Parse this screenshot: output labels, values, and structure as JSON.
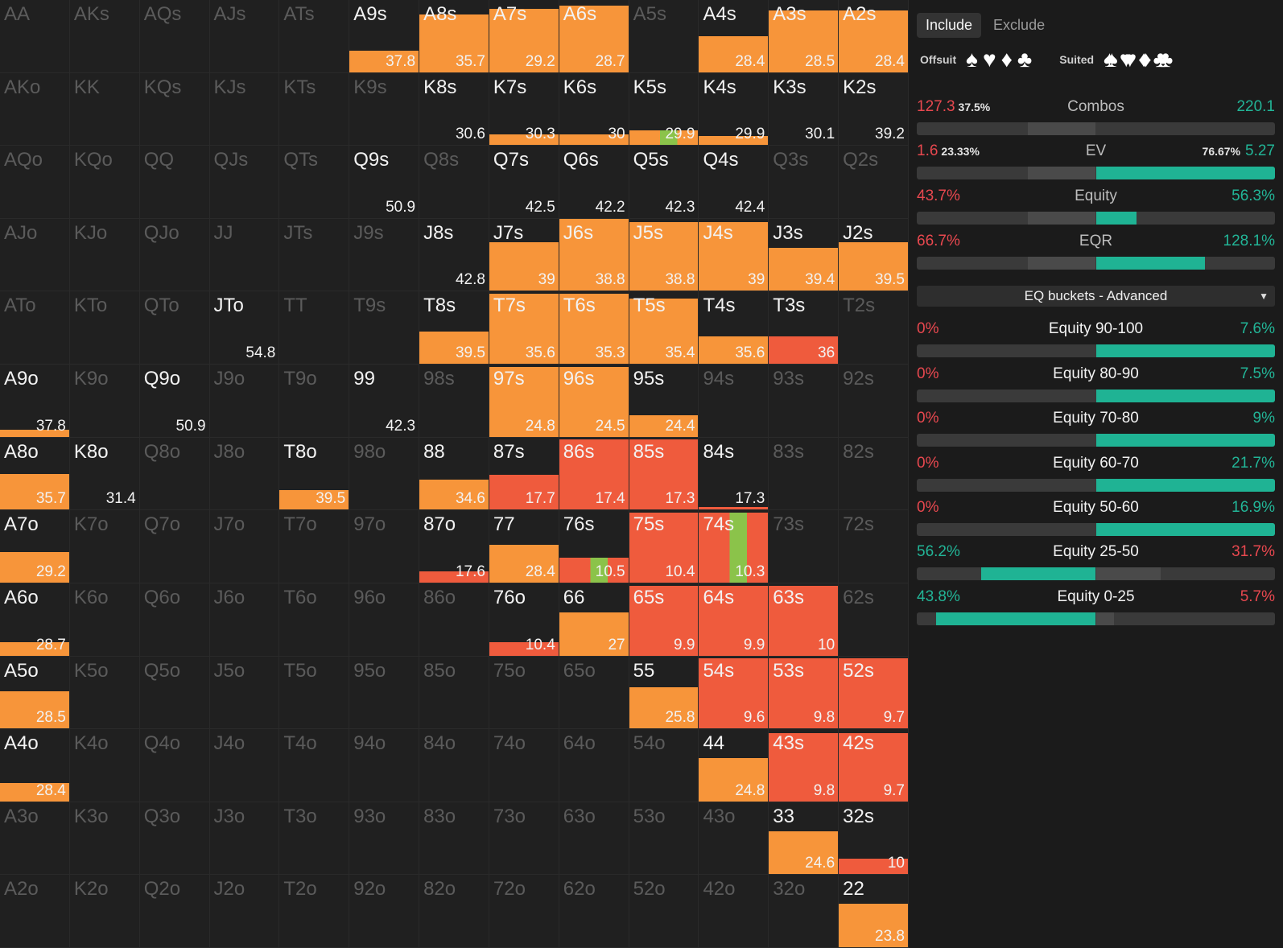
{
  "grid": {
    "rows": [
      [
        [
          "AA",
          0,
          0
        ],
        [
          "AKs",
          0,
          0
        ],
        [
          "AQs",
          0,
          0
        ],
        [
          "AJs",
          0,
          0
        ],
        [
          "ATs",
          0,
          0
        ],
        [
          "A9s",
          1,
          "37.8"
        ],
        [
          "A8s",
          1,
          "35.7"
        ],
        [
          "A7s",
          1,
          "29.2"
        ],
        [
          "A6s",
          1,
          "28.7"
        ],
        [
          "A5s",
          0,
          0
        ],
        [
          "A4s",
          1,
          "28.4"
        ],
        [
          "A3s",
          1,
          "28.5"
        ],
        [
          "A2s",
          1,
          "28.4"
        ]
      ],
      [
        [
          "AKo",
          0,
          0
        ],
        [
          "KK",
          0,
          0
        ],
        [
          "KQs",
          0,
          0
        ],
        [
          "KJs",
          0,
          0
        ],
        [
          "KTs",
          0,
          0
        ],
        [
          "K9s",
          0,
          0
        ],
        [
          "K8s",
          1,
          "30.6"
        ],
        [
          "K7s",
          1,
          "30.3"
        ],
        [
          "K6s",
          1,
          "30"
        ],
        [
          "K5s",
          1,
          "29.9"
        ],
        [
          "K4s",
          1,
          "29.9"
        ],
        [
          "K3s",
          1,
          "30.1"
        ],
        [
          "K2s",
          1,
          "39.2"
        ]
      ],
      [
        [
          "AQo",
          0,
          0
        ],
        [
          "KQo",
          0,
          0
        ],
        [
          "QQ",
          0,
          0
        ],
        [
          "QJs",
          0,
          0
        ],
        [
          "QTs",
          0,
          0
        ],
        [
          "Q9s",
          1,
          "50.9"
        ],
        [
          "Q8s",
          0,
          0
        ],
        [
          "Q7s",
          1,
          "42.5"
        ],
        [
          "Q6s",
          1,
          "42.2"
        ],
        [
          "Q5s",
          1,
          "42.3"
        ],
        [
          "Q4s",
          1,
          "42.4"
        ],
        [
          "Q3s",
          0,
          0
        ],
        [
          "Q2s",
          0,
          0
        ]
      ],
      [
        [
          "AJo",
          0,
          0
        ],
        [
          "KJo",
          0,
          0
        ],
        [
          "QJo",
          0,
          0
        ],
        [
          "JJ",
          0,
          0
        ],
        [
          "JTs",
          0,
          0
        ],
        [
          "J9s",
          0,
          0
        ],
        [
          "J8s",
          1,
          "42.8"
        ],
        [
          "J7s",
          1,
          "39"
        ],
        [
          "J6s",
          1,
          "38.8"
        ],
        [
          "J5s",
          1,
          "38.8"
        ],
        [
          "J4s",
          1,
          "39"
        ],
        [
          "J3s",
          1,
          "39.4"
        ],
        [
          "J2s",
          1,
          "39.5"
        ]
      ],
      [
        [
          "ATo",
          0,
          0
        ],
        [
          "KTo",
          0,
          0
        ],
        [
          "QTo",
          0,
          0
        ],
        [
          "JTo",
          1,
          "54.8"
        ],
        [
          "TT",
          0,
          0
        ],
        [
          "T9s",
          0,
          0
        ],
        [
          "T8s",
          1,
          "39.5"
        ],
        [
          "T7s",
          1,
          "35.6"
        ],
        [
          "T6s",
          1,
          "35.3"
        ],
        [
          "T5s",
          1,
          "35.4"
        ],
        [
          "T4s",
          1,
          "35.6"
        ],
        [
          "T3s",
          1,
          "36"
        ],
        [
          "T2s",
          0,
          0
        ]
      ],
      [
        [
          "A9o",
          1,
          "37.8"
        ],
        [
          "K9o",
          0,
          0
        ],
        [
          "Q9o",
          1,
          "50.9"
        ],
        [
          "J9o",
          0,
          0
        ],
        [
          "T9o",
          0,
          0
        ],
        [
          "99",
          1,
          "42.3"
        ],
        [
          "98s",
          0,
          0
        ],
        [
          "97s",
          1,
          "24.8"
        ],
        [
          "96s",
          1,
          "24.5"
        ],
        [
          "95s",
          1,
          "24.4"
        ],
        [
          "94s",
          0,
          0
        ],
        [
          "93s",
          0,
          0
        ],
        [
          "92s",
          0,
          0
        ]
      ],
      [
        [
          "A8o",
          1,
          "35.7"
        ],
        [
          "K8o",
          1,
          "31.4"
        ],
        [
          "Q8o",
          0,
          0
        ],
        [
          "J8o",
          0,
          0
        ],
        [
          "T8o",
          1,
          "39.5"
        ],
        [
          "98o",
          0,
          0
        ],
        [
          "88",
          1,
          "34.6"
        ],
        [
          "87s",
          1,
          "17.7"
        ],
        [
          "86s",
          1,
          "17.4"
        ],
        [
          "85s",
          1,
          "17.3"
        ],
        [
          "84s",
          1,
          "17.3"
        ],
        [
          "83s",
          0,
          0
        ],
        [
          "82s",
          0,
          0
        ]
      ],
      [
        [
          "A7o",
          1,
          "29.2"
        ],
        [
          "K7o",
          0,
          0
        ],
        [
          "Q7o",
          0,
          0
        ],
        [
          "J7o",
          0,
          0
        ],
        [
          "T7o",
          0,
          0
        ],
        [
          "97o",
          0,
          0
        ],
        [
          "87o",
          1,
          "17.6"
        ],
        [
          "77",
          1,
          "28.4"
        ],
        [
          "76s",
          1,
          "10.5"
        ],
        [
          "75s",
          1,
          "10.4"
        ],
        [
          "74s",
          1,
          "10.3"
        ],
        [
          "73s",
          0,
          0
        ],
        [
          "72s",
          0,
          0
        ]
      ],
      [
        [
          "A6o",
          1,
          "28.7"
        ],
        [
          "K6o",
          0,
          0
        ],
        [
          "Q6o",
          0,
          0
        ],
        [
          "J6o",
          0,
          0
        ],
        [
          "T6o",
          0,
          0
        ],
        [
          "96o",
          0,
          0
        ],
        [
          "86o",
          0,
          0
        ],
        [
          "76o",
          1,
          "10.4"
        ],
        [
          "66",
          1,
          "27"
        ],
        [
          "65s",
          1,
          "9.9"
        ],
        [
          "64s",
          1,
          "9.9"
        ],
        [
          "63s",
          1,
          "10"
        ],
        [
          "62s",
          0,
          0
        ]
      ],
      [
        [
          "A5o",
          1,
          "28.5"
        ],
        [
          "K5o",
          0,
          0
        ],
        [
          "Q5o",
          0,
          0
        ],
        [
          "J5o",
          0,
          0
        ],
        [
          "T5o",
          0,
          0
        ],
        [
          "95o",
          0,
          0
        ],
        [
          "85o",
          0,
          0
        ],
        [
          "75o",
          0,
          0
        ],
        [
          "65o",
          0,
          0
        ],
        [
          "55",
          1,
          "25.8"
        ],
        [
          "54s",
          1,
          "9.6"
        ],
        [
          "53s",
          1,
          "9.8"
        ],
        [
          "52s",
          1,
          "9.7"
        ]
      ],
      [
        [
          "A4o",
          1,
          "28.4"
        ],
        [
          "K4o",
          0,
          0
        ],
        [
          "Q4o",
          0,
          0
        ],
        [
          "J4o",
          0,
          0
        ],
        [
          "T4o",
          0,
          0
        ],
        [
          "94o",
          0,
          0
        ],
        [
          "84o",
          0,
          0
        ],
        [
          "74o",
          0,
          0
        ],
        [
          "64o",
          0,
          0
        ],
        [
          "54o",
          0,
          0
        ],
        [
          "44",
          1,
          "24.8"
        ],
        [
          "43s",
          1,
          "9.8"
        ],
        [
          "42s",
          1,
          "9.7"
        ]
      ],
      [
        [
          "A3o",
          0,
          0
        ],
        [
          "K3o",
          0,
          0
        ],
        [
          "Q3o",
          0,
          0
        ],
        [
          "J3o",
          0,
          0
        ],
        [
          "T3o",
          0,
          0
        ],
        [
          "93o",
          0,
          0
        ],
        [
          "83o",
          0,
          0
        ],
        [
          "73o",
          0,
          0
        ],
        [
          "63o",
          0,
          0
        ],
        [
          "53o",
          0,
          0
        ],
        [
          "43o",
          0,
          0
        ],
        [
          "33",
          1,
          "24.6"
        ],
        [
          "32s",
          1,
          "10"
        ]
      ],
      [
        [
          "A2o",
          0,
          0
        ],
        [
          "K2o",
          0,
          0
        ],
        [
          "Q2o",
          0,
          0
        ],
        [
          "J2o",
          0,
          0
        ],
        [
          "T2o",
          0,
          0
        ],
        [
          "92o",
          0,
          0
        ],
        [
          "82o",
          0,
          0
        ],
        [
          "72o",
          0,
          0
        ],
        [
          "62o",
          0,
          0
        ],
        [
          "52o",
          0,
          0
        ],
        [
          "42o",
          0,
          0
        ],
        [
          "32o",
          0,
          0
        ],
        [
          "22",
          1,
          "23.8"
        ]
      ]
    ],
    "frequency": {
      "A9s": 0.3,
      "A8s": 0.8,
      "A7s": 0.88,
      "A6s": 0.92,
      "A4s": 0.5,
      "A3s": 0.85,
      "A2s": 0.85,
      "K7s": 0.15,
      "K6s": 0.15,
      "K5s": 0.2,
      "K4s": 0.12,
      "J7s": 0.68,
      "J6s": 1.0,
      "J5s": 0.95,
      "J4s": 0.95,
      "J3s": 0.6,
      "J2s": 0.68,
      "T8s": 0.45,
      "T7s": 0.97,
      "T6s": 0.97,
      "T5s": 0.9,
      "T4s": 0.38,
      "T3s": 0.38,
      "A9o": 0.1,
      "97s": 0.97,
      "96s": 0.97,
      "95s": 0.3,
      "A8o": 0.5,
      "T8o": 0.27,
      "88": 0.42,
      "87s": 0.48,
      "86s": 0.97,
      "85s": 0.97,
      "84s": 0.04,
      "A7o": 0.42,
      "87o": 0.15,
      "77": 0.52,
      "76s": 0.35,
      "75s": 0.97,
      "74s": 0.97,
      "A6o": 0.18,
      "76o": 0.18,
      "66": 0.6,
      "65s": 0.97,
      "64s": 0.97,
      "63s": 0.97,
      "A5o": 0.52,
      "55": 0.57,
      "54s": 0.97,
      "53s": 0.97,
      "52s": 0.97,
      "A4o": 0.25,
      "44": 0.6,
      "43s": 0.95,
      "42s": 0.95,
      "33": 0.6,
      "32s": 0.22,
      "22": 0.6
    },
    "colors": {
      "orange": "#f7953a",
      "red": "#ef5b3d",
      "green": "#8bc34a",
      "cell_bg": "#202020"
    }
  },
  "panel": {
    "tabs": {
      "include": "Include",
      "exclude": "Exclude"
    },
    "offsuit_label": "Offsuit",
    "suited_label": "Suited",
    "suit_icons": [
      "♠",
      "♥",
      "♦",
      "♣"
    ],
    "suited_icons": [
      "♠♠",
      "♥♥",
      "♦♦",
      "♣♣"
    ],
    "stats": [
      {
        "label": "Combos",
        "left": "127.3",
        "left_pct": "37.5%",
        "right": "220.1",
        "right_pct": "",
        "fill": 0.5,
        "color": "#f7940f"
      },
      {
        "label": "EV",
        "left": "1.6",
        "left_pct": "23.33%",
        "right": "5.27",
        "right_pct": "76.67%",
        "fill": 0.77,
        "color": "#1fb394"
      },
      {
        "label": "Equity",
        "left": "43.7%",
        "left_pct": "",
        "right": "56.3%",
        "right_pct": "",
        "fill": 0.56,
        "color": "#1fb394"
      },
      {
        "label": "EQR",
        "left": "66.7%",
        "left_pct": "",
        "right": "128.1%",
        "right_pct": "",
        "fill": 0.66,
        "color": "#1fb394"
      }
    ],
    "dropdown": "EQ buckets - Advanced",
    "buckets": [
      {
        "label": "Equity 90-100",
        "left": "0%",
        "right": "7.6%",
        "side": "right",
        "fill": 1.0
      },
      {
        "label": "Equity 80-90",
        "left": "0%",
        "right": "7.5%",
        "side": "right",
        "fill": 1.0
      },
      {
        "label": "Equity 70-80",
        "left": "0%",
        "right": "9%",
        "side": "right",
        "fill": 1.0
      },
      {
        "label": "Equity 60-70",
        "left": "0%",
        "right": "21.7%",
        "side": "right",
        "fill": 1.0
      },
      {
        "label": "Equity 50-60",
        "left": "0%",
        "right": "16.9%",
        "side": "right",
        "fill": 1.0
      },
      {
        "label": "Equity 25-50",
        "left": "56.2%",
        "right": "31.7%",
        "side": "left",
        "fill": 0.64
      },
      {
        "label": "Equity 0-25",
        "left": "43.8%",
        "right": "5.7%",
        "side": "left",
        "fill": 0.89
      }
    ]
  }
}
